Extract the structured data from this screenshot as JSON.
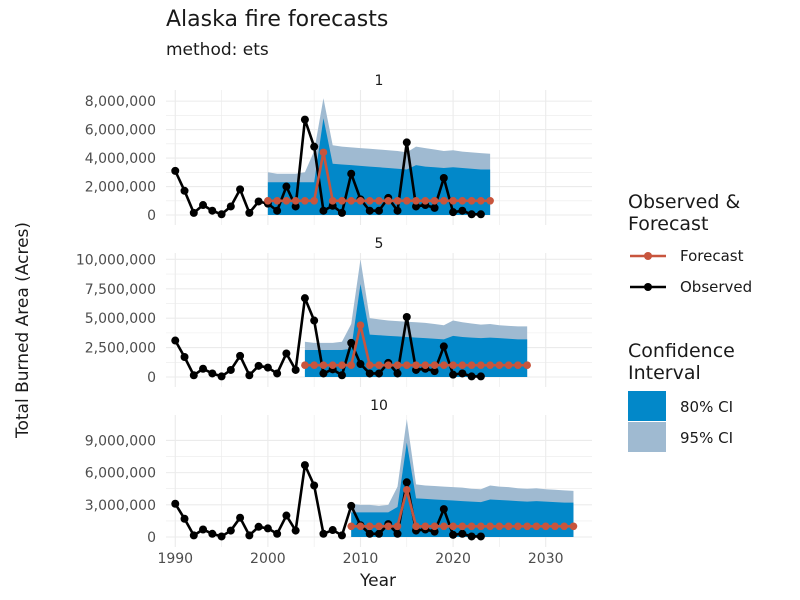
{
  "title": "Alaska fire forecasts",
  "subtitle": "method: ets",
  "colors": {
    "forecast": "#c8553d",
    "observed": "#000000",
    "ci80": "#0288c9",
    "ci95": "#9fbad1",
    "grid": "#ebebeb"
  },
  "legend": {
    "line_title": [
      "Observed &",
      "Forecast"
    ],
    "line_items": [
      {
        "label": "Forecast",
        "key": "forecast"
      },
      {
        "label": "Observed",
        "key": "observed"
      }
    ],
    "ci_title": [
      "Confidence",
      "Interval"
    ],
    "ci_items": [
      {
        "label": "80% CI",
        "key": "ci80"
      },
      {
        "label": "95% CI",
        "key": "ci95"
      }
    ]
  },
  "chart_data": {
    "type": "line",
    "xlabel": "Year",
    "ylabel": "Total Burned Area (Acres)",
    "xlim": [
      1989,
      2035
    ],
    "xticks": [
      1990,
      2000,
      2010,
      2020,
      2030
    ],
    "observed": {
      "x": [
        1990,
        1991,
        1992,
        1993,
        1994,
        1995,
        1996,
        1997,
        1998,
        1999,
        2000,
        2001,
        2002,
        2003,
        2004,
        2005,
        2006,
        2007,
        2008,
        2009,
        2010,
        2011,
        2012,
        2013,
        2014,
        2015,
        2016,
        2017,
        2018,
        2019,
        2020,
        2021,
        2022,
        2023
      ],
      "y": [
        3100000,
        1700000,
        150000,
        700000,
        300000,
        50000,
        600000,
        1800000,
        150000,
        950000,
        800000,
        300000,
        2000000,
        600000,
        6700000,
        4800000,
        300000,
        650000,
        150000,
        2900000,
        1100000,
        300000,
        300000,
        1200000,
        300000,
        5100000,
        600000,
        700000,
        500000,
        2600000,
        200000,
        300000,
        50000,
        50000
      ]
    },
    "panels": [
      {
        "label": "1",
        "ylim": [
          0,
          8500000
        ],
        "yticks": [
          0,
          2000000,
          4000000,
          6000000,
          8000000
        ],
        "ytick_labels": [
          "0",
          "2,000,000",
          "4,000,000",
          "6,000,000",
          "8,000,000"
        ],
        "forecast": {
          "x": [
            2000,
            2001,
            2002,
            2003,
            2004,
            2005,
            2006,
            2007,
            2008,
            2009,
            2010,
            2011,
            2012,
            2013,
            2014,
            2015,
            2016,
            2017,
            2018,
            2019,
            2020,
            2021,
            2022,
            2023,
            2024
          ],
          "y": [
            1000000,
            1000000,
            1000000,
            1000000,
            1000000,
            1000000,
            4400000,
            1000000,
            1000000,
            1000000,
            1000000,
            1000000,
            1000000,
            1000000,
            1000000,
            1000000,
            1000000,
            1000000,
            1000000,
            1000000,
            1000000,
            1000000,
            1000000,
            1000000,
            1000000
          ]
        },
        "ci80_upper": [
          2300000,
          2300000,
          2300000,
          2300000,
          2300000,
          2300000,
          6800000,
          3600000,
          3550000,
          3500000,
          3450000,
          3400000,
          3350000,
          3300000,
          3250000,
          3200000,
          3500000,
          3400000,
          3350000,
          3300000,
          3350000,
          3300000,
          3250000,
          3200000,
          3200000
        ],
        "ci95_upper": [
          3000000,
          2900000,
          2900000,
          2900000,
          3000000,
          4500000,
          8200000,
          4900000,
          4800000,
          4750000,
          4700000,
          4650000,
          4600000,
          4550000,
          4500000,
          4400000,
          4800000,
          4700000,
          4600000,
          4500000,
          4550000,
          4450000,
          4400000,
          4350000,
          4300000
        ]
      },
      {
        "label": "5",
        "ylim": [
          0,
          10200000
        ],
        "yticks": [
          0,
          2500000,
          5000000,
          7500000,
          10000000
        ],
        "ytick_labels": [
          "0",
          "2,500,000",
          "5,000,000",
          "7,500,000",
          "10,000,000"
        ],
        "forecast": {
          "x": [
            2004,
            2005,
            2006,
            2007,
            2008,
            2009,
            2010,
            2011,
            2012,
            2013,
            2014,
            2015,
            2016,
            2017,
            2018,
            2019,
            2020,
            2021,
            2022,
            2023,
            2024,
            2025,
            2026,
            2027,
            2028
          ],
          "y": [
            1000000,
            1000000,
            1000000,
            1000000,
            1000000,
            1000000,
            4400000,
            1000000,
            1000000,
            1000000,
            1000000,
            1000000,
            1000000,
            1000000,
            1000000,
            1000000,
            1000000,
            1000000,
            1000000,
            1000000,
            1000000,
            1000000,
            1000000,
            1000000,
            1000000
          ]
        },
        "ci80_upper": [
          2300000,
          2300000,
          2300000,
          2300000,
          2300000,
          2400000,
          7900000,
          3600000,
          3550000,
          3500000,
          3450000,
          3400000,
          3350000,
          3300000,
          3250000,
          3200000,
          3500000,
          3400000,
          3350000,
          3300000,
          3350000,
          3300000,
          3250000,
          3200000,
          3200000
        ],
        "ci95_upper": [
          3000000,
          2900000,
          2900000,
          2900000,
          3000000,
          4500000,
          10000000,
          5000000,
          4900000,
          4800000,
          4750000,
          4700000,
          4650000,
          4600000,
          4500000,
          4400000,
          4800000,
          4650000,
          4550000,
          4450000,
          4500000,
          4400000,
          4350000,
          4300000,
          4300000
        ]
      },
      {
        "label": "10",
        "ylim": [
          0,
          11000000
        ],
        "yticks": [
          0,
          3000000,
          6000000,
          9000000
        ],
        "ytick_labels": [
          "0",
          "3,000,000",
          "6,000,000",
          "9,000,000"
        ],
        "forecast": {
          "x": [
            2009,
            2010,
            2011,
            2012,
            2013,
            2014,
            2015,
            2016,
            2017,
            2018,
            2019,
            2020,
            2021,
            2022,
            2023,
            2024,
            2025,
            2026,
            2027,
            2028,
            2029,
            2030,
            2031,
            2032,
            2033
          ],
          "y": [
            1000000,
            1000000,
            1000000,
            1000000,
            1000000,
            1000000,
            4400000,
            1000000,
            1000000,
            1000000,
            1000000,
            1000000,
            1000000,
            1000000,
            1000000,
            1000000,
            1000000,
            1000000,
            1000000,
            1000000,
            1000000,
            1000000,
            1000000,
            1000000,
            1000000
          ]
        },
        "ci80_upper": [
          2300000,
          2300000,
          2300000,
          2300000,
          2300000,
          2800000,
          8800000,
          3600000,
          3550000,
          3500000,
          3450000,
          3400000,
          3350000,
          3300000,
          3250000,
          3500000,
          3450000,
          3400000,
          3350000,
          3300000,
          3350000,
          3300000,
          3250000,
          3200000,
          3200000
        ],
        "ci95_upper": [
          3100000,
          3000000,
          3000000,
          2900000,
          3000000,
          4700000,
          11000000,
          4900000,
          4800000,
          4750000,
          4700000,
          4650000,
          4600000,
          4500000,
          4450000,
          4800000,
          4700000,
          4650000,
          4550000,
          4500000,
          4550000,
          4450000,
          4400000,
          4350000,
          4300000
        ]
      }
    ]
  }
}
